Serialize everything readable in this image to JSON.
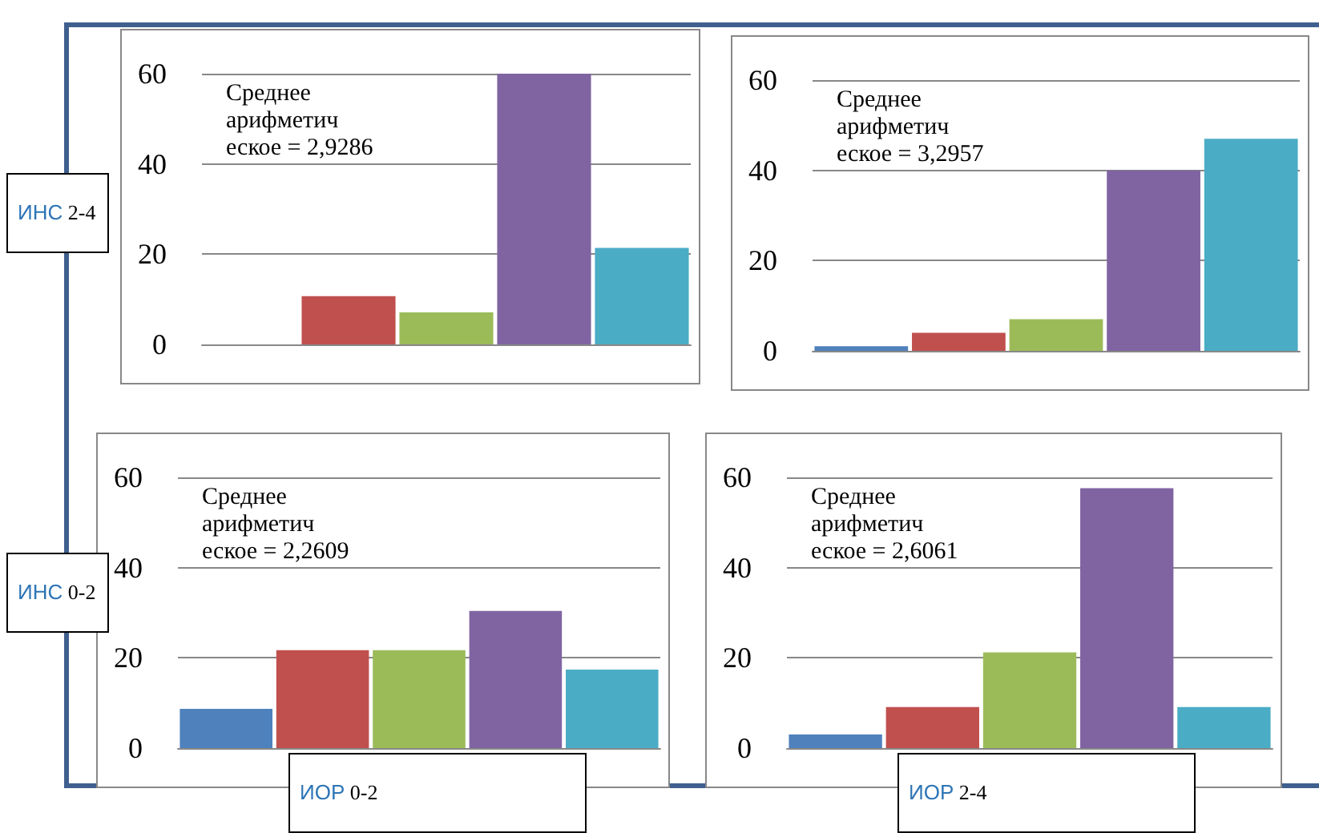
{
  "chart_data": [
    {
      "type": "bar",
      "categories": [
        null,
        null,
        null,
        null,
        null
      ],
      "values": [
        0,
        10.7,
        7.1,
        60,
        21.4
      ],
      "colors": [
        "#4f81bd",
        "#c0504d",
        "#9bbb59",
        "#8064a2",
        "#4bacc6"
      ],
      "ylim": [
        0,
        60
      ],
      "yticks": [
        0,
        20,
        40,
        60
      ],
      "grid": "y",
      "ylabel": "ИНС 2-4",
      "annotations": [
        "Среднее арифметическое = 2,9286"
      ]
    },
    {
      "type": "bar",
      "categories": [
        null,
        null,
        null,
        null,
        null
      ],
      "values": [
        1,
        4,
        7,
        40,
        47
      ],
      "colors": [
        "#4f81bd",
        "#c0504d",
        "#9bbb59",
        "#8064a2",
        "#4bacc6"
      ],
      "ylim": [
        0,
        60
      ],
      "yticks": [
        0,
        20,
        40,
        60
      ],
      "grid": "y",
      "annotations": [
        "Среднее арифметическое = 3,2957"
      ]
    },
    {
      "type": "bar",
      "categories": [
        null,
        null,
        null,
        null,
        null
      ],
      "values": [
        8.7,
        21.7,
        21.7,
        30.4,
        17.4
      ],
      "colors": [
        "#4f81bd",
        "#c0504d",
        "#9bbb59",
        "#8064a2",
        "#4bacc6"
      ],
      "ylim": [
        0,
        60
      ],
      "yticks": [
        0,
        20,
        40,
        60
      ],
      "grid": "y",
      "ylabel": "ИНС 0-2",
      "xlabel": "ИОР 0-2",
      "annotations": [
        "Среднее арифметическое = 2,2609"
      ]
    },
    {
      "type": "bar",
      "categories": [
        null,
        null,
        null,
        null,
        null
      ],
      "values": [
        3,
        9.1,
        21.2,
        57.6,
        9.1
      ],
      "colors": [
        "#4f81bd",
        "#c0504d",
        "#9bbb59",
        "#8064a2",
        "#4bacc6"
      ],
      "ylim": [
        0,
        60
      ],
      "yticks": [
        0,
        20,
        40,
        60
      ],
      "grid": "y",
      "xlabel": "ИОР 2-4",
      "annotations": [
        "Среднее арифметическое = 2,6061"
      ]
    }
  ]
}
